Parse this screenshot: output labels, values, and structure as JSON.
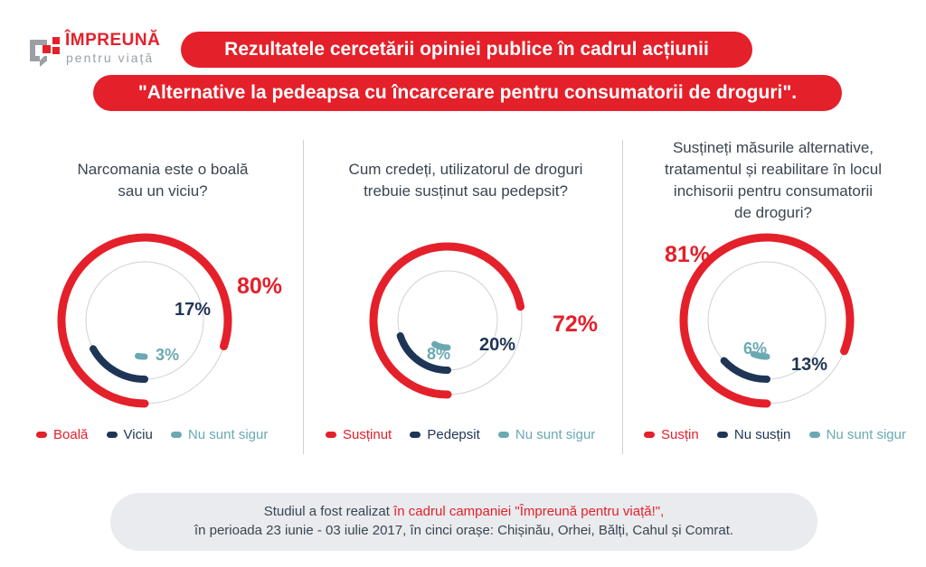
{
  "logo": {
    "main": "ÎMPREUNĂ",
    "sub": "pentru viață"
  },
  "title": {
    "line1": "Rezultatele cercetării opiniei publice în cadrul acțiunii",
    "line2": "\"Alternative la pedeapsa cu încarcerare pentru consumatorii de droguri\"."
  },
  "colors": {
    "red": "#e4202a",
    "navy": "#1f3556",
    "teal": "#6aa9b2",
    "track": "#cdd2d6"
  },
  "chart_data": [
    {
      "type": "radial-bar",
      "title": "Narcomania este o boală sau un viciu?",
      "series": [
        {
          "name": "Boală",
          "value": 80,
          "label": "80%"
        },
        {
          "name": "Viciu",
          "value": 17,
          "label": "17%"
        },
        {
          "name": "Nu sunt sigur",
          "value": 3,
          "label": "3%"
        }
      ]
    },
    {
      "type": "radial-bar",
      "title": "Cum credeți, utilizatorul de droguri trebuie susținut sau pedepsit?",
      "series": [
        {
          "name": "Susținut",
          "value": 72,
          "label": "72%"
        },
        {
          "name": "Pedepsit",
          "value": 20,
          "label": "20%"
        },
        {
          "name": "Nu sunt sigur",
          "value": 8,
          "label": "8%"
        }
      ]
    },
    {
      "type": "radial-bar",
      "title": "Susțineți măsurile alternative, tratamentul și reabilitare în locul inchisorii pentru consumatorii de droguri?",
      "series": [
        {
          "name": "Susțin",
          "value": 81,
          "label": "81%"
        },
        {
          "name": "Nu susțin",
          "value": 13,
          "label": "13%"
        },
        {
          "name": "Nu sunt sigur",
          "value": 6,
          "label": "6%"
        }
      ]
    }
  ],
  "questions": [
    {
      "line1": "Narcomania este o boală",
      "line2": "sau un viciu?"
    },
    {
      "line1": "Cum credeți, utilizatorul de droguri",
      "line2": "trebuie susținut sau pedepsit?"
    },
    {
      "line1": "Susțineți măsurile alternative,",
      "line2": "tratamentul și reabilitare în locul",
      "line3": "inchisorii pentru consumatorii",
      "line4": "de droguri?"
    }
  ],
  "footer": {
    "line1_prefix": "Studiul a fost realizat ",
    "line1_highlight": "în cadrul campaniei \"Împreună pentru viață!\",",
    "line2": "în perioada 23 iunie - 03 iulie 2017, în cinci orașe: Chișinău, Orhei, Bălți, Cahul și Comrat."
  }
}
